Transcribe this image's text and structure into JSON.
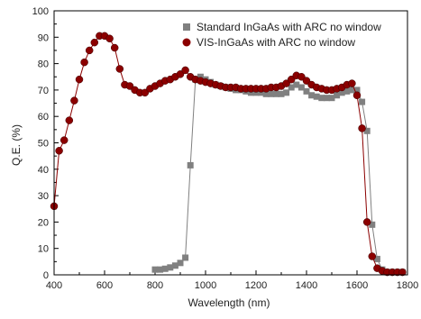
{
  "chart_data": {
    "type": "scatter",
    "title": "",
    "xlabel": "Wavelength (nm)",
    "ylabel": "Q.E. (%)",
    "xlim": [
      400,
      1800
    ],
    "ylim": [
      0,
      100
    ],
    "xticks": [
      400,
      600,
      800,
      1000,
      1200,
      1400,
      1600,
      1800
    ],
    "yticks": [
      0,
      10,
      20,
      30,
      40,
      50,
      60,
      70,
      80,
      90,
      100
    ],
    "xtick_labels": [
      "400",
      "600",
      "800",
      "1000",
      "1200",
      "1400",
      "1600",
      "1800"
    ],
    "ytick_labels": [
      "0",
      "10",
      "20",
      "30",
      "40",
      "50",
      "60",
      "70",
      "80",
      "90",
      "100"
    ],
    "grid": false,
    "legend_position": "top-right",
    "series": [
      {
        "name": "Standard InGaAs with ARC no window",
        "color": "#808080",
        "marker": "square",
        "x": [
          800,
          820,
          840,
          860,
          880,
          900,
          920,
          940,
          960,
          980,
          1000,
          1020,
          1040,
          1060,
          1080,
          1100,
          1120,
          1140,
          1160,
          1180,
          1200,
          1220,
          1240,
          1260,
          1280,
          1300,
          1320,
          1340,
          1360,
          1380,
          1400,
          1420,
          1440,
          1460,
          1480,
          1500,
          1520,
          1540,
          1560,
          1580,
          1600,
          1620,
          1640,
          1660,
          1680,
          1700,
          1720,
          1740,
          1760,
          1780
        ],
        "y": [
          2,
          2,
          2.3,
          2.8,
          3.5,
          4.5,
          6.5,
          41.5,
          74,
          75,
          74,
          73,
          72,
          71.5,
          71,
          70.5,
          70,
          70,
          69.5,
          69,
          69,
          69,
          68.5,
          68.5,
          68.5,
          68.5,
          69,
          71,
          72,
          71,
          69.5,
          68,
          67.5,
          67,
          67,
          67,
          68,
          69,
          69.5,
          70,
          70,
          65.5,
          54.5,
          19,
          6,
          2,
          1,
          1,
          1,
          1
        ]
      },
      {
        "name": "VIS-InGaAs with ARC no window",
        "color": "#8b0000",
        "marker": "circle",
        "x": [
          400,
          420,
          440,
          460,
          480,
          500,
          520,
          540,
          560,
          580,
          600,
          620,
          640,
          660,
          680,
          700,
          720,
          740,
          760,
          780,
          800,
          820,
          840,
          860,
          880,
          900,
          920,
          940,
          960,
          980,
          1000,
          1020,
          1040,
          1060,
          1080,
          1100,
          1120,
          1140,
          1160,
          1180,
          1200,
          1220,
          1240,
          1260,
          1280,
          1300,
          1320,
          1340,
          1360,
          1380,
          1400,
          1420,
          1440,
          1460,
          1480,
          1500,
          1520,
          1540,
          1560,
          1580,
          1600,
          1620,
          1640,
          1660,
          1680,
          1700,
          1720,
          1740,
          1760,
          1780
        ],
        "y": [
          26,
          47,
          51,
          58.5,
          66,
          74,
          80.5,
          85,
          88,
          90.5,
          90.5,
          89.5,
          86,
          78,
          72,
          71.5,
          70,
          69,
          69,
          70.5,
          71.5,
          72.5,
          73.5,
          74,
          75,
          76,
          77.5,
          75,
          74,
          73.5,
          73,
          72.5,
          72,
          71.5,
          71,
          71,
          71,
          70.5,
          70.5,
          70.5,
          70.5,
          70.5,
          70.5,
          71,
          71,
          71.5,
          72.5,
          74,
          75.5,
          75,
          73.5,
          72,
          71,
          70.5,
          70,
          70,
          70.5,
          71,
          72,
          72.5,
          68,
          55.5,
          20,
          7,
          2.5,
          1.5,
          1,
          1,
          1,
          1
        ]
      }
    ]
  }
}
